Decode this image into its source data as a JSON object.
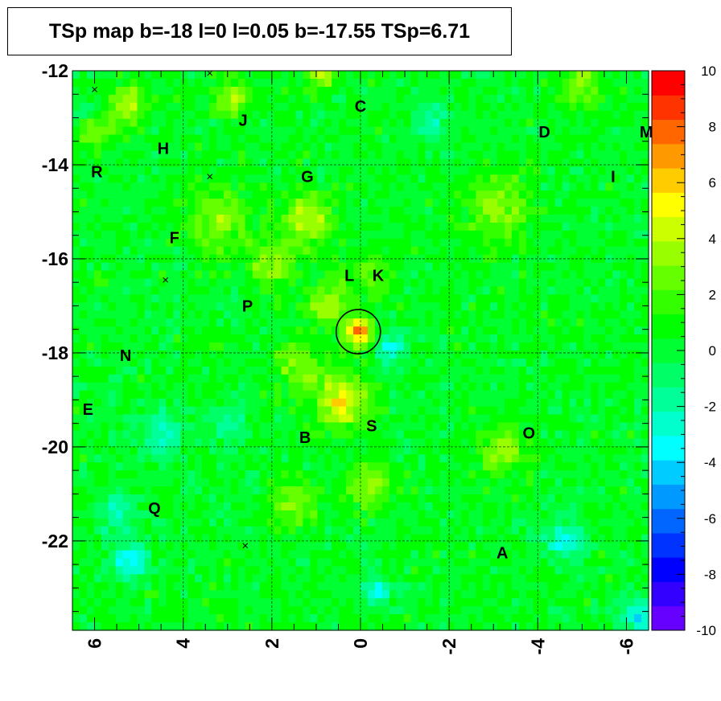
{
  "chart_data": {
    "type": "heatmap",
    "title": "TSp map b=-18 l=0 l=0.05 b=-17.55 TSp=6.71",
    "xlabel": "",
    "ylabel": "",
    "xlim": [
      6.5,
      -6.5
    ],
    "ylim": [
      -23.9,
      -12
    ],
    "x_ticks": [
      6,
      4,
      2,
      0,
      -2,
      -4,
      -6
    ],
    "y_ticks": [
      -12,
      -14,
      -16,
      -18,
      -20,
      -22
    ],
    "z_range": [
      -10,
      10
    ],
    "colorbar_ticks": [
      10,
      8,
      6,
      4,
      2,
      0,
      -2,
      -4,
      -6,
      -8,
      -10
    ],
    "grid": true,
    "background_level": 0.3,
    "hotspots": [
      {
        "l": 0.05,
        "b": -17.55,
        "ts": 6.7,
        "sigma": 0.22
      },
      {
        "l": 0.4,
        "b": -19.0,
        "ts": 4.8,
        "sigma": 0.4
      },
      {
        "l": 1.2,
        "b": -15.2,
        "ts": 3.8,
        "sigma": 0.4
      },
      {
        "l": 0.7,
        "b": -16.9,
        "ts": 3.2,
        "sigma": 0.35
      },
      {
        "l": 2.0,
        "b": -16.1,
        "ts": 3.0,
        "sigma": 0.35
      },
      {
        "l": 0.9,
        "b": -12.1,
        "ts": 4.5,
        "sigma": 0.2
      },
      {
        "l": 2.9,
        "b": -12.6,
        "ts": 3.5,
        "sigma": 0.3
      },
      {
        "l": -5.0,
        "b": -12.3,
        "ts": 3.2,
        "sigma": 0.3
      },
      {
        "l": 5.2,
        "b": -12.7,
        "ts": 3.5,
        "sigma": 0.3
      },
      {
        "l": 6.0,
        "b": -13.2,
        "ts": 3.0,
        "sigma": 0.3
      },
      {
        "l": -3.1,
        "b": -14.9,
        "ts": 3.0,
        "sigma": 0.5
      },
      {
        "l": 3.2,
        "b": -15.2,
        "ts": 2.8,
        "sigma": 0.5
      },
      {
        "l": -3.2,
        "b": -20.1,
        "ts": 3.2,
        "sigma": 0.35
      },
      {
        "l": 1.5,
        "b": -21.2,
        "ts": 3.0,
        "sigma": 0.35
      },
      {
        "l": -0.2,
        "b": -20.8,
        "ts": 3.0,
        "sigma": 0.35
      },
      {
        "l": 1.4,
        "b": -18.3,
        "ts": 2.5,
        "sigma": 0.4
      },
      {
        "l": -0.3,
        "b": -16.3,
        "ts": 2.0,
        "sigma": 0.3
      }
    ],
    "coldspots": [
      {
        "l": 5.2,
        "b": -22.4,
        "ts": -4.2,
        "sigma": 0.25
      },
      {
        "l": -0.4,
        "b": -23.1,
        "ts": -4.0,
        "sigma": 0.2
      },
      {
        "l": -4.6,
        "b": -22.0,
        "ts": -3.5,
        "sigma": 0.3
      },
      {
        "l": -6.3,
        "b": -23.6,
        "ts": -4.0,
        "sigma": 0.3
      },
      {
        "l": -0.7,
        "b": -17.9,
        "ts": -3.0,
        "sigma": 0.25
      },
      {
        "l": -1.6,
        "b": -13.1,
        "ts": -2.5,
        "sigma": 0.25
      },
      {
        "l": 4.5,
        "b": -19.7,
        "ts": -2.8,
        "sigma": 0.35
      },
      {
        "l": 5.5,
        "b": -21.4,
        "ts": -2.5,
        "sigma": 0.3
      },
      {
        "l": 6.2,
        "b": -12.9,
        "ts": -2.2,
        "sigma": 0.2
      },
      {
        "l": 3.0,
        "b": -19.5,
        "ts": -2.0,
        "sigma": 0.3
      }
    ],
    "source_circle": {
      "l": 0.05,
      "b": -17.55,
      "radius_deg": 0.5
    },
    "sources": [
      {
        "label": "C",
        "l": 0.0,
        "b": -12.75
      },
      {
        "label": "J",
        "l": 2.65,
        "b": -13.05
      },
      {
        "label": "D",
        "l": -4.15,
        "b": -13.3
      },
      {
        "label": "M",
        "l": -6.45,
        "b": -13.3
      },
      {
        "label": "H",
        "l": 4.45,
        "b": -13.65
      },
      {
        "label": "R",
        "l": 5.95,
        "b": -14.15
      },
      {
        "label": "G",
        "l": 1.2,
        "b": -14.25
      },
      {
        "label": "I",
        "l": -5.7,
        "b": -14.25
      },
      {
        "label": "F",
        "l": 4.2,
        "b": -15.55
      },
      {
        "label": "L",
        "l": 0.25,
        "b": -16.35
      },
      {
        "label": "K",
        "l": -0.4,
        "b": -16.35
      },
      {
        "label": "P",
        "l": 2.55,
        "b": -17.0
      },
      {
        "label": "N",
        "l": 5.3,
        "b": -18.05
      },
      {
        "label": "E",
        "l": 6.15,
        "b": -19.2
      },
      {
        "label": "S",
        "l": -0.25,
        "b": -19.55
      },
      {
        "label": "B",
        "l": 1.25,
        "b": -19.8
      },
      {
        "label": "O",
        "l": -3.8,
        "b": -19.7
      },
      {
        "label": "Q",
        "l": 4.65,
        "b": -21.3
      },
      {
        "label": "A",
        "l": -3.2,
        "b": -22.25
      }
    ],
    "crosses": [
      {
        "l": 6.0,
        "b": -12.4
      },
      {
        "l": 3.4,
        "b": -12.05
      },
      {
        "l": 3.4,
        "b": -14.25
      },
      {
        "l": 4.4,
        "b": -16.45
      },
      {
        "l": 2.6,
        "b": -22.1
      }
    ]
  },
  "colors": {
    "palette": [
      "#6600ff",
      "#3300ff",
      "#0000ff",
      "#0033ff",
      "#0066ff",
      "#0099ff",
      "#00ccff",
      "#00ffff",
      "#00ffcc",
      "#00ff99",
      "#00ff66",
      "#00ff33",
      "#00ff00",
      "#33ff00",
      "#66ff00",
      "#99ff00",
      "#ccff00",
      "#ffff00",
      "#ffcc00",
      "#ff9900",
      "#ff6600",
      "#ff3300",
      "#ff0000"
    ]
  }
}
